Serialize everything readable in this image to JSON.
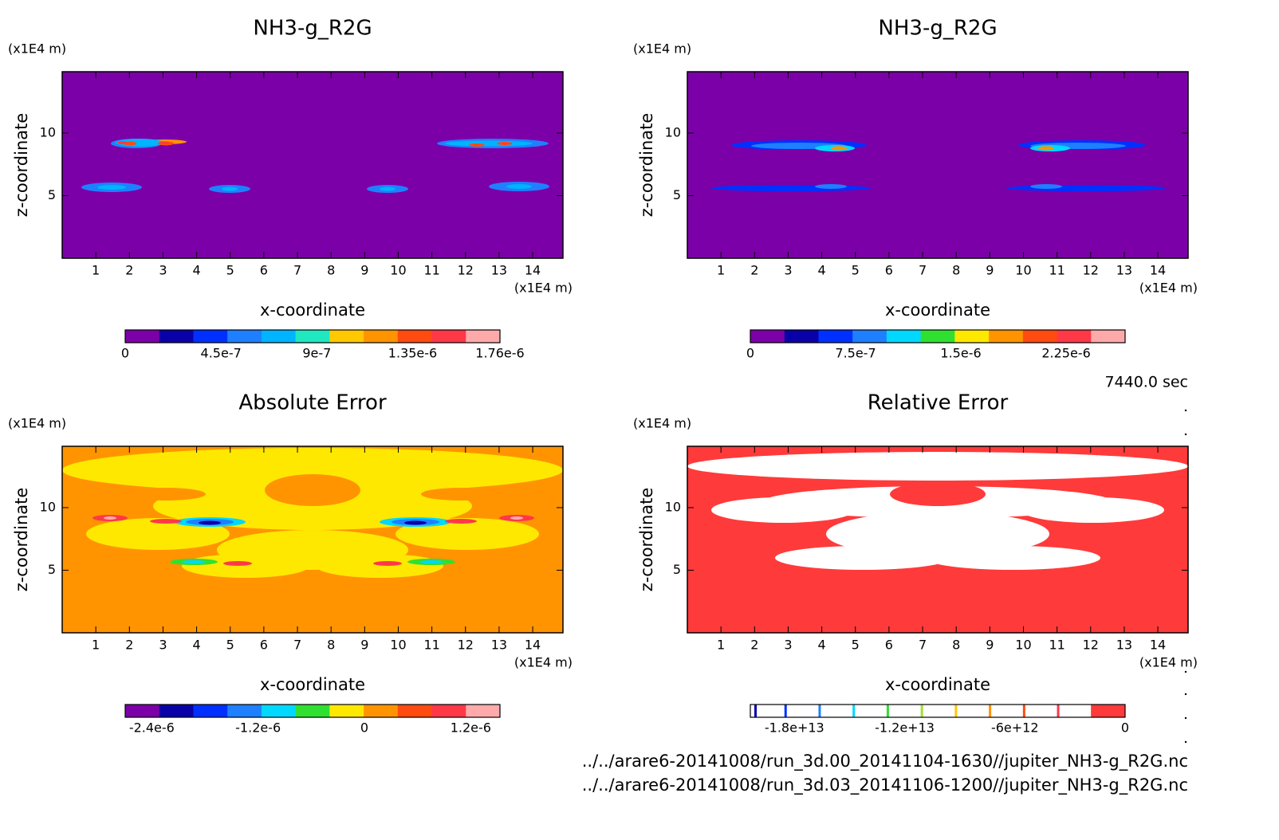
{
  "chart_data": [
    {
      "type": "contour",
      "title": "NH3-g_R2G",
      "y_unit": "(x1E4 m)",
      "x_unit": "(x1E4 m)",
      "xlabel": "x-coordinate",
      "ylabel": "z-coordinate",
      "xlim": [
        0,
        14.9
      ],
      "ylim": [
        0,
        14.9
      ],
      "xticks": [
        1,
        2,
        3,
        4,
        5,
        6,
        7,
        8,
        9,
        10,
        11,
        12,
        13,
        14
      ],
      "yticks": [
        5,
        10
      ],
      "colorbar": {
        "lim": [
          0,
          1.76e-06
        ],
        "ticks": [
          {
            "value": 0,
            "label": "0"
          },
          {
            "value": 4.5e-07,
            "label": "4.5e-7"
          },
          {
            "value": 9e-07,
            "label": "9e-7"
          },
          {
            "value": 1.35e-06,
            "label": "1.35e-6"
          },
          {
            "value": 1.76e-06,
            "label": "1.76e-6"
          }
        ],
        "colors": [
          "#7c00a8",
          "#0a00a8",
          "#0030ff",
          "#1e80ff",
          "#00b4ff",
          "#20e8c0",
          "#ffc800",
          "#ff9400",
          "#ff4a10",
          "#ff3848",
          "#ffaaaa"
        ]
      }
    },
    {
      "type": "contour",
      "title": "NH3-g_R2G",
      "y_unit": "(x1E4 m)",
      "x_unit": "(x1E4 m)",
      "xlabel": "x-coordinate",
      "ylabel": "z-coordinate",
      "xlim": [
        0,
        14.9
      ],
      "ylim": [
        0,
        14.9
      ],
      "xticks": [
        1,
        2,
        3,
        4,
        5,
        6,
        7,
        8,
        9,
        10,
        11,
        12,
        13,
        14
      ],
      "yticks": [
        5,
        10
      ],
      "colorbar": {
        "lim": [
          0,
          2.67e-06
        ],
        "ticks": [
          {
            "value": 0,
            "label": "0"
          },
          {
            "value": 7.5e-07,
            "label": "7.5e-7"
          },
          {
            "value": 1.5e-06,
            "label": "1.5e-6"
          },
          {
            "value": 2.25e-06,
            "label": "2.25e-6"
          }
        ],
        "colors": [
          "#7c00a8",
          "#0a00a8",
          "#0030ff",
          "#1e80ff",
          "#00d8ff",
          "#30e030",
          "#ffe800",
          "#ff9400",
          "#ff4a10",
          "#ff3848",
          "#ffaaaa"
        ]
      }
    },
    {
      "type": "contour",
      "title": "Absolute Error",
      "y_unit": "(x1E4 m)",
      "x_unit": "(x1E4 m)",
      "xlabel": "x-coordinate",
      "ylabel": "z-coordinate",
      "xlim": [
        0,
        14.9
      ],
      "ylim": [
        0,
        14.9
      ],
      "xticks": [
        1,
        2,
        3,
        4,
        5,
        6,
        7,
        8,
        9,
        10,
        11,
        12,
        13,
        14
      ],
      "yticks": [
        5,
        10
      ],
      "colorbar": {
        "lim": [
          -2.7e-06,
          1.53e-06
        ],
        "ticks": [
          {
            "value": -2.4e-06,
            "label": "-2.4e-6"
          },
          {
            "value": -1.2e-06,
            "label": "-1.2e-6"
          },
          {
            "value": 0,
            "label": "0"
          },
          {
            "value": 1.2e-06,
            "label": "1.2e-6"
          }
        ],
        "colors": [
          "#7c00a8",
          "#0a00a8",
          "#0030ff",
          "#1e80ff",
          "#00d8ff",
          "#30e030",
          "#ffe800",
          "#ff9400",
          "#ff4a10",
          "#ff3848",
          "#ffaaaa"
        ]
      }
    },
    {
      "type": "contour",
      "title": "Relative Error",
      "y_unit": "(x1E4 m)",
      "x_unit": "(x1E4 m)",
      "xlabel": "x-coordinate",
      "ylabel": "z-coordinate",
      "xlim": [
        0,
        14.9
      ],
      "ylim": [
        0,
        14.9
      ],
      "xticks": [
        1,
        2,
        3,
        4,
        5,
        6,
        7,
        8,
        9,
        10,
        11,
        12,
        13,
        14
      ],
      "yticks": [
        5,
        10
      ],
      "colorbar": {
        "lim": [
          -20400000000000.0,
          0
        ],
        "ticks": [
          {
            "value": -18000000000000.0,
            "label": "-1.8e+13"
          },
          {
            "value": -12000000000000.0,
            "label": "-1.2e+13"
          },
          {
            "value": -6000000000000.0,
            "label": "-6e+12"
          },
          {
            "value": 0,
            "label": "0"
          }
        ],
        "colors": [
          "#ffffff",
          "#ffffff",
          "#ffffff",
          "#ffffff",
          "#ffffff",
          "#ffffff",
          "#ffffff",
          "#ffffff",
          "#ffffff",
          "#ffffff",
          "#ff3a3a"
        ],
        "boundary_colors": [
          "#0a00a8",
          "#0030ff",
          "#1e80ff",
          "#00d8ff",
          "#30e030",
          "#a0e030",
          "#ffc800",
          "#ff9400",
          "#ff4a10",
          "#ff3848",
          "#ff3a3a"
        ]
      }
    }
  ],
  "time_label": "7440.0 sec",
  "files": [
    "../../arare6-20141008/run_3d.00_20141104-1630//jupiter_NH3-g_R2G.nc",
    "../../arare6-20141008/run_3d.03_20141106-1200//jupiter_NH3-g_R2G.nc"
  ]
}
